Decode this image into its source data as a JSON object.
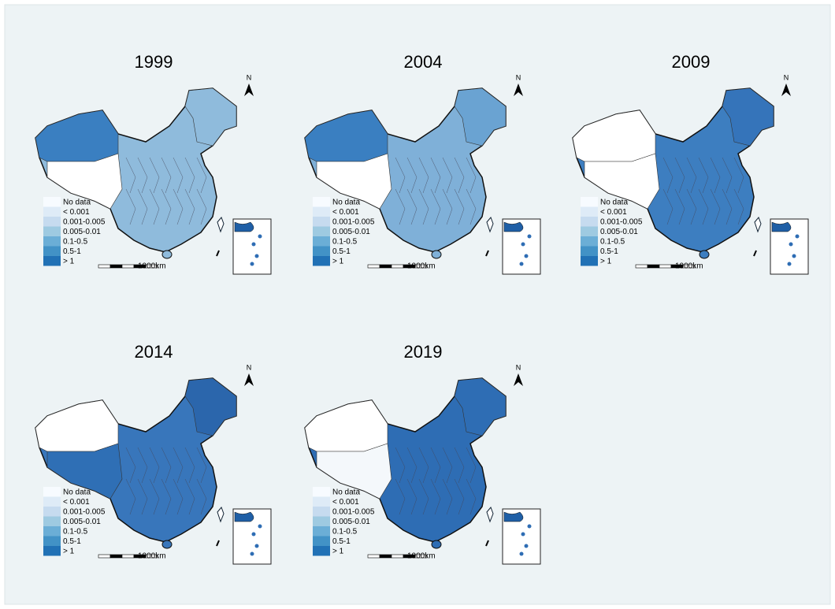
{
  "maps": [
    {
      "title": "1999"
    },
    {
      "title": "2004"
    },
    {
      "title": "2009"
    },
    {
      "title": "2014"
    },
    {
      "title": "2019"
    }
  ],
  "legend": {
    "items": [
      {
        "label": "No data",
        "color": "#f7fbff"
      },
      {
        "label": "< 0.001",
        "color": "#deebf7"
      },
      {
        "label": "0.001-0.005",
        "color": "#c6dbef"
      },
      {
        "label": "0.005-0.01",
        "color": "#9ecae1"
      },
      {
        "label": "0.1-0.5",
        "color": "#6baed6"
      },
      {
        "label": "0.5-1",
        "color": "#4292c6"
      },
      {
        "label": "> 1",
        "color": "#2171b5"
      }
    ]
  },
  "north": "N",
  "scale": "1000km"
}
